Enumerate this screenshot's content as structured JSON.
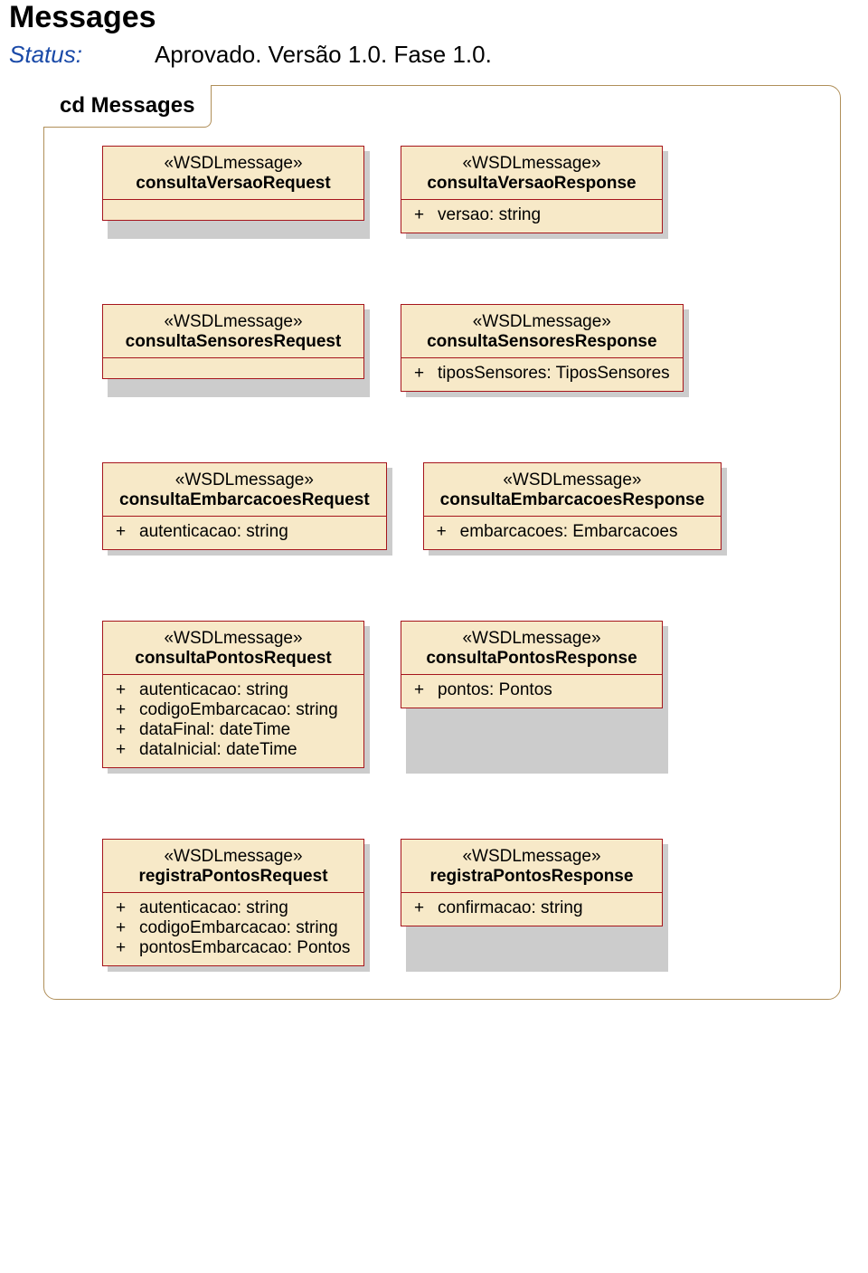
{
  "page": {
    "title": "Messages",
    "status_label": "Status:",
    "status_value": "Aprovado. Versão 1.0. Fase  1.0."
  },
  "diagram": {
    "tab_label": "cd Messages",
    "stereotype": "«WSDLmessage»",
    "box_bg": "#f7e9c8",
    "box_border": "#a6151c",
    "shadow_color": "#cccccc",
    "frame_border": "#b08f59"
  },
  "boxes": {
    "consultaVersaoRequest": {
      "name": "consultaVersaoRequest",
      "attrs": []
    },
    "consultaVersaoResponse": {
      "name": "consultaVersaoResponse",
      "attrs": [
        {
          "vis": "+",
          "text": "versao: string"
        }
      ]
    },
    "consultaSensoresRequest": {
      "name": "consultaSensoresRequest",
      "attrs": []
    },
    "consultaSensoresResponse": {
      "name": "consultaSensoresResponse",
      "attrs": [
        {
          "vis": "+",
          "text": "tiposSensores: TiposSensores"
        }
      ]
    },
    "consultaEmbarcacoesRequest": {
      "name": "consultaEmbarcacoesRequest",
      "attrs": [
        {
          "vis": "+",
          "text": "autenticacao: string"
        }
      ]
    },
    "consultaEmbarcacoesResponse": {
      "name": "consultaEmbarcacoesResponse",
      "attrs": [
        {
          "vis": "+",
          "text": "embarcacoes: Embarcacoes"
        }
      ]
    },
    "consultaPontosRequest": {
      "name": "consultaPontosRequest",
      "attrs": [
        {
          "vis": "+",
          "text": "autenticacao: string"
        },
        {
          "vis": "+",
          "text": "codigoEmbarcacao: string"
        },
        {
          "vis": "+",
          "text": "dataFinal: dateTime"
        },
        {
          "vis": "+",
          "text": "dataInicial: dateTime"
        }
      ]
    },
    "consultaPontosResponse": {
      "name": "consultaPontosResponse",
      "attrs": [
        {
          "vis": "+",
          "text": "pontos: Pontos"
        }
      ]
    },
    "registraPontosRequest": {
      "name": "registraPontosRequest",
      "attrs": [
        {
          "vis": "+",
          "text": "autenticacao: string"
        },
        {
          "vis": "+",
          "text": "codigoEmbarcacao: string"
        },
        {
          "vis": "+",
          "text": "pontosEmbarcacao: Pontos"
        }
      ]
    },
    "registraPontosResponse": {
      "name": "registraPontosResponse",
      "attrs": [
        {
          "vis": "+",
          "text": "confirmacao: string"
        }
      ]
    }
  }
}
